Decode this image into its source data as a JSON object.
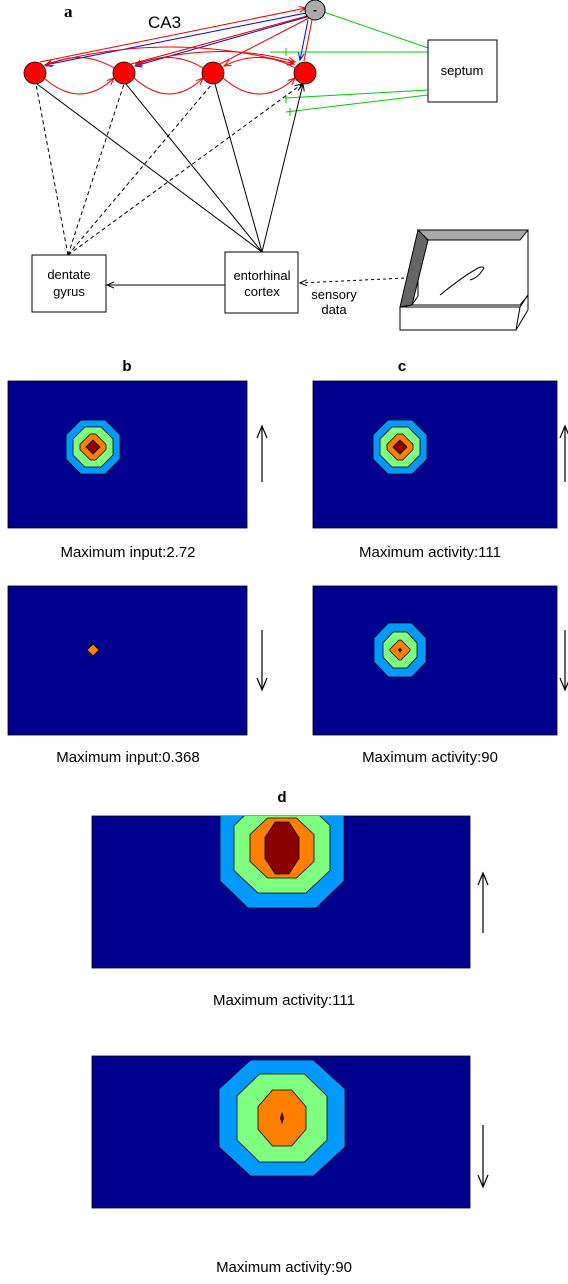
{
  "panel_a": {
    "label": "a",
    "region": "CA3",
    "inhibitory": "-",
    "septum": "septum",
    "dentate_gyrus": [
      "dentate",
      "gyrus"
    ],
    "entorhinal_cortex": [
      "entorhinal",
      "cortex"
    ],
    "sensory_data": [
      "sensory",
      "data"
    ]
  },
  "panel_b": {
    "label": "b",
    "captions": [
      "Maximum input:2.72",
      "Maximum input:0.368"
    ]
  },
  "panel_c": {
    "label": "c",
    "captions": [
      "Maximum activity:111",
      "Maximum activity:90"
    ]
  },
  "panel_d": {
    "label": "d",
    "captions": [
      "Maximum activity:111",
      "Maximum activity:90"
    ]
  }
}
